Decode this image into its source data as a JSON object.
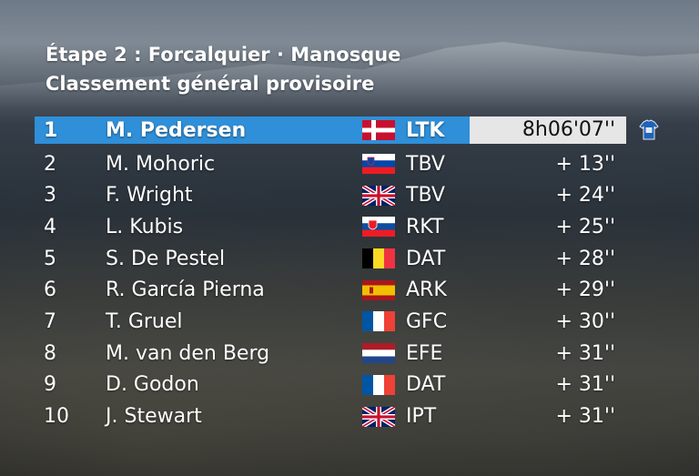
{
  "header": {
    "stage_title": "Étape 2 : Forcalquier · Manosque",
    "subtitle": "Classement général provisoire"
  },
  "colors": {
    "leader_highlight": "#2f8fd8",
    "leader_time_bg": "#e6e6e6"
  },
  "standings": [
    {
      "rank": "1",
      "name": "M. Pedersen",
      "flag": "denmark-flag",
      "team": "LTK",
      "time": "8h06'07''"
    },
    {
      "rank": "2",
      "name": "M. Mohoric",
      "flag": "slovenia-flag",
      "team": "TBV",
      "time": "+ 13''"
    },
    {
      "rank": "3",
      "name": "F. Wright",
      "flag": "uk-flag",
      "team": "TBV",
      "time": "+ 24''"
    },
    {
      "rank": "4",
      "name": "L. Kubis",
      "flag": "slovakia-flag",
      "team": "RKT",
      "time": "+ 25''"
    },
    {
      "rank": "5",
      "name": "S. De Pestel",
      "flag": "belgium-flag",
      "team": "DAT",
      "time": "+ 28''"
    },
    {
      "rank": "6",
      "name": "R. García Pierna",
      "flag": "spain-flag",
      "team": "ARK",
      "time": "+ 29''"
    },
    {
      "rank": "7",
      "name": "T. Gruel",
      "flag": "france-flag",
      "team": "GFC",
      "time": "+ 30''"
    },
    {
      "rank": "8",
      "name": "M. van den Berg",
      "flag": "netherlands-flag",
      "team": "EFE",
      "time": "+ 31''"
    },
    {
      "rank": "9",
      "name": "D. Godon",
      "flag": "france-flag",
      "team": "DAT",
      "time": "+ 31''"
    },
    {
      "rank": "10",
      "name": "J. Stewart",
      "flag": "uk-flag",
      "team": "IPT",
      "time": "+ 31''"
    }
  ],
  "leader_icon": "leader-jersey-icon"
}
